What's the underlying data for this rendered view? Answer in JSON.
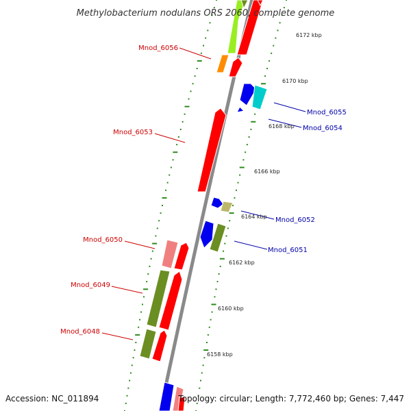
{
  "title": "Methylobacterium nodulans ORS 2060, complete genome",
  "accession": "Accession: NC_011894",
  "summary": "Topology: circular; Length: 7,772,460 bp; Genes: 7,447",
  "kbp_labels": [
    "6172 kbp",
    "6170 kbp",
    "6168 kbp",
    "6166 kbp",
    "6164 kbp",
    "6162 kbp",
    "6160 kbp",
    "6158 kbp"
  ],
  "colors": {
    "backbone": "#8a8a8a",
    "tick": "#2a8a1a",
    "forward_label": "#cc0000",
    "reverse_label": "#0000aa",
    "red": "#ff0000",
    "pink": "#f08080",
    "olive": "#6b8e23",
    "blue": "#0000ee",
    "cyan": "#00cccc",
    "khaki": "#bdb76b",
    "orange": "#ff8c00",
    "lime": "#99ee22"
  },
  "gene_labels": {
    "left": [
      "Mnod_6056",
      "Mnod_6053",
      "Mnod_6050",
      "Mnod_6049",
      "Mnod_6048"
    ],
    "right": [
      "Mnod_6055",
      "Mnod_6054",
      "Mnod_6052",
      "Mnod_6051"
    ]
  }
}
